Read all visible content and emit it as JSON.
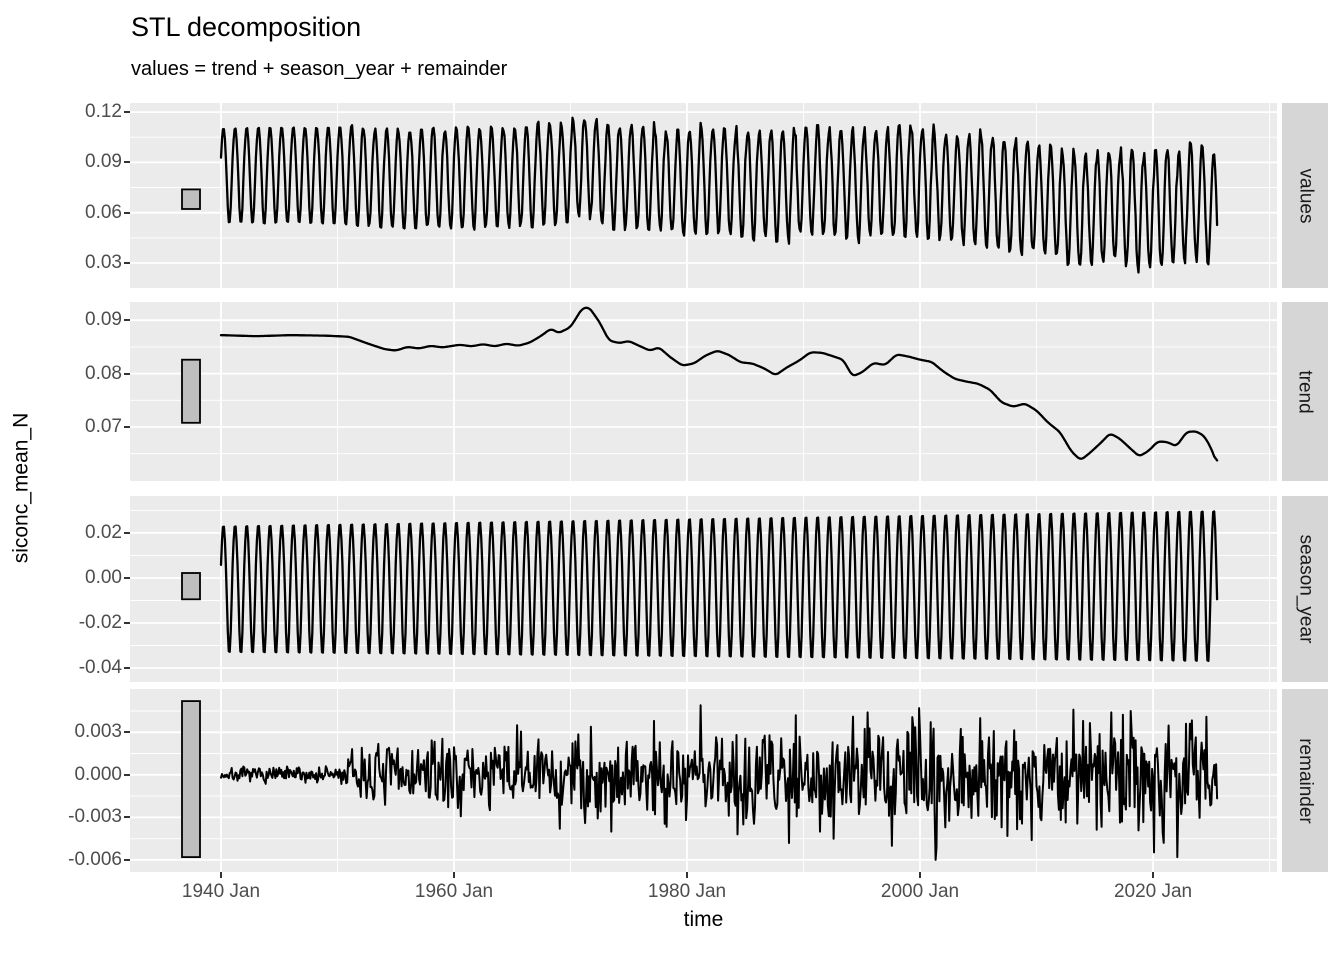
{
  "title": "STL decomposition",
  "subtitle": "values = trend + season_year + remainder",
  "y_axis": {
    "label": "siconc_mean_N"
  },
  "x_axis": {
    "label": "time",
    "ticks": [
      {
        "year": 1940,
        "label": "1940 Jan"
      },
      {
        "year": 1960,
        "label": "1960 Jan"
      },
      {
        "year": 1980,
        "label": "1980 Jan"
      },
      {
        "year": 2000,
        "label": "2000 Jan"
      },
      {
        "year": 2020,
        "label": "2020 Jan"
      }
    ],
    "minor_years": [
      1950,
      1970,
      1990,
      2010,
      2030
    ]
  },
  "colors": {
    "panel_bg": "#EBEBEB",
    "strip_bg": "#D6D6D6",
    "grid": "#FFFFFF",
    "line": "#000000",
    "bar_fill": "#BFBFBF",
    "bar_border": "#000000",
    "tick_text": "#4D4D4D",
    "text": "#000000"
  },
  "chart_data": {
    "type": "line",
    "title": "STL decomposition",
    "subtitle": "values = trend + season_year + remainder",
    "xlabel": "time",
    "ylabel": "siconc_mean_N",
    "frequency": "monthly",
    "time_range": [
      1940.0,
      2025.5
    ],
    "x_domain": [
      1932.19,
      2030.64
    ],
    "grid": "on",
    "panels": [
      {
        "name": "values",
        "y_ticks": [
          0.12,
          0.09,
          0.06,
          0.03
        ],
        "y_tick_labels": [
          "0.12",
          "0.09",
          "0.06",
          "0.03"
        ],
        "y_domain": [
          0.0151,
          0.1254
        ],
        "range_bar": [
          0.0622,
          0.0739
        ],
        "description": "observed monthly series; annual cycle between ~0.11 peaks (Mar) and ~0.05 troughs (Sep), slowly declining to peaks ~0.093 and troughs ~0.028 by 2025"
      },
      {
        "name": "trend",
        "y_ticks": [
          0.09,
          0.08,
          0.07
        ],
        "y_tick_labels": [
          "0.09",
          "0.08",
          "0.07"
        ],
        "y_domain": [
          0.0599,
          0.0934
        ],
        "range_bar": [
          0.0708,
          0.0826
        ],
        "control_points": [
          [
            1940,
            0.0872
          ],
          [
            1943,
            0.087
          ],
          [
            1946,
            0.0872
          ],
          [
            1949,
            0.0871
          ],
          [
            1951,
            0.0869
          ],
          [
            1952.5,
            0.0857
          ],
          [
            1954,
            0.0846
          ],
          [
            1955,
            0.0843
          ],
          [
            1956,
            0.085
          ],
          [
            1957,
            0.0847
          ],
          [
            1958,
            0.0852
          ],
          [
            1959,
            0.0849
          ],
          [
            1960.5,
            0.0854
          ],
          [
            1961.5,
            0.0851
          ],
          [
            1962.5,
            0.0855
          ],
          [
            1963.5,
            0.0851
          ],
          [
            1964.5,
            0.0856
          ],
          [
            1965.5,
            0.0852
          ],
          [
            1966.5,
            0.0858
          ],
          [
            1967.5,
            0.0871
          ],
          [
            1968.3,
            0.0884
          ],
          [
            1969,
            0.0876
          ],
          [
            1970,
            0.0887
          ],
          [
            1971,
            0.0922
          ],
          [
            1971.6,
            0.0924
          ],
          [
            1972.5,
            0.0896
          ],
          [
            1973.3,
            0.0862
          ],
          [
            1974.2,
            0.0857
          ],
          [
            1975,
            0.0861
          ],
          [
            1975.8,
            0.0853
          ],
          [
            1976.8,
            0.0843
          ],
          [
            1977.6,
            0.0849
          ],
          [
            1978.6,
            0.083
          ],
          [
            1979.6,
            0.0815
          ],
          [
            1980.6,
            0.0819
          ],
          [
            1981.6,
            0.0834
          ],
          [
            1982.6,
            0.0843
          ],
          [
            1983.6,
            0.0835
          ],
          [
            1984.6,
            0.0821
          ],
          [
            1985.6,
            0.0819
          ],
          [
            1986.6,
            0.081
          ],
          [
            1987.6,
            0.0797
          ],
          [
            1988.6,
            0.0812
          ],
          [
            1989.6,
            0.0824
          ],
          [
            1990.6,
            0.084
          ],
          [
            1991.6,
            0.0839
          ],
          [
            1992.6,
            0.0832
          ],
          [
            1993.4,
            0.0826
          ],
          [
            1994.2,
            0.0795
          ],
          [
            1995,
            0.0802
          ],
          [
            1996,
            0.082
          ],
          [
            1997,
            0.0816
          ],
          [
            1998,
            0.0836
          ],
          [
            1999,
            0.0832
          ],
          [
            2000,
            0.0826
          ],
          [
            2001,
            0.0822
          ],
          [
            2002,
            0.0804
          ],
          [
            2003,
            0.079
          ],
          [
            2004,
            0.0785
          ],
          [
            2005,
            0.0781
          ],
          [
            2006,
            0.077
          ],
          [
            2007,
            0.0746
          ],
          [
            2008,
            0.0738
          ],
          [
            2009,
            0.0744
          ],
          [
            2010,
            0.0731
          ],
          [
            2011,
            0.0708
          ],
          [
            2012,
            0.0691
          ],
          [
            2013,
            0.0654
          ],
          [
            2013.8,
            0.0638
          ],
          [
            2014.6,
            0.0652
          ],
          [
            2015.5,
            0.067
          ],
          [
            2016.3,
            0.0688
          ],
          [
            2017.1,
            0.0679
          ],
          [
            2018,
            0.0661
          ],
          [
            2018.8,
            0.0645
          ],
          [
            2019.6,
            0.0655
          ],
          [
            2020.4,
            0.0673
          ],
          [
            2021.2,
            0.0672
          ],
          [
            2022,
            0.0664
          ],
          [
            2022.9,
            0.0691
          ],
          [
            2023.7,
            0.0692
          ],
          [
            2024.4,
            0.0683
          ],
          [
            2025,
            0.066
          ],
          [
            2025.5,
            0.063
          ]
        ]
      },
      {
        "name": "season_year",
        "y_ticks": [
          0.02,
          0.0,
          -0.02,
          -0.04
        ],
        "y_tick_labels": [
          "0.02",
          "0.00",
          "-0.02",
          "-0.04"
        ],
        "y_domain": [
          -0.0462,
          0.0364
        ],
        "range_bar": [
          -0.0095,
          0.0022
        ],
        "seasonal": {
          "peak_phase": 0.21,
          "pos_amp": [
            0.0235,
            0.0305
          ],
          "neg_amp": [
            0.0338,
            0.038
          ],
          "description": "annual cycle, max ~Mar (+0.024 growing to +0.030), min ~Sep (-0.034 deepening to -0.038)"
        }
      },
      {
        "name": "remainder",
        "y_ticks": [
          0.003,
          0.0,
          -0.003,
          -0.006
        ],
        "y_tick_labels": [
          "0.003",
          "0.000",
          "-0.003",
          "-0.006"
        ],
        "y_domain": [
          -0.00685,
          0.00605
        ],
        "range_bar": [
          -0.0058,
          0.0052
        ],
        "noise": {
          "seed": 7,
          "envelope": [
            [
              1940,
              0.00035
            ],
            [
              1950.2,
              0.0005
            ],
            [
              1951.3,
              0.0015
            ],
            [
              1956,
              0.0017
            ],
            [
              1962,
              0.0018
            ],
            [
              1968,
              0.0021
            ],
            [
              1974,
              0.0023
            ],
            [
              1980,
              0.0026
            ],
            [
              1986,
              0.0027
            ],
            [
              1992,
              0.0027
            ],
            [
              1998,
              0.0028
            ],
            [
              2004,
              0.0028
            ],
            [
              2010,
              0.003
            ],
            [
              2016,
              0.0029
            ],
            [
              2022,
              0.003
            ],
            [
              2025.5,
              0.003
            ]
          ],
          "spikes": [
            [
              1965.4,
              0.0035
            ],
            [
              1969.1,
              -0.0038
            ],
            [
              1973.5,
              -0.004
            ],
            [
              1977.2,
              0.0038
            ],
            [
              1981.2,
              0.0049
            ],
            [
              1984.3,
              -0.0042
            ],
            [
              1989.3,
              0.0042
            ],
            [
              1992.6,
              -0.0045
            ],
            [
              1995.5,
              0.0044
            ],
            [
              1997.6,
              -0.005
            ],
            [
              2001.3,
              -0.006
            ],
            [
              2005.2,
              0.004
            ],
            [
              2009.6,
              -0.0046
            ],
            [
              2013.2,
              0.0046
            ],
            [
              2016.4,
              0.0044
            ],
            [
              2018.1,
              0.0045
            ],
            [
              2020.9,
              -0.0048
            ],
            [
              2022.1,
              -0.0058
            ],
            [
              2024.6,
              0.0041
            ]
          ],
          "description": "near-zero noise (±0.0003) until ~1950, then irregular noise mostly ±0.003 with extremes -0.006 (~2001) and +0.005 (~1981)"
        }
      }
    ]
  }
}
